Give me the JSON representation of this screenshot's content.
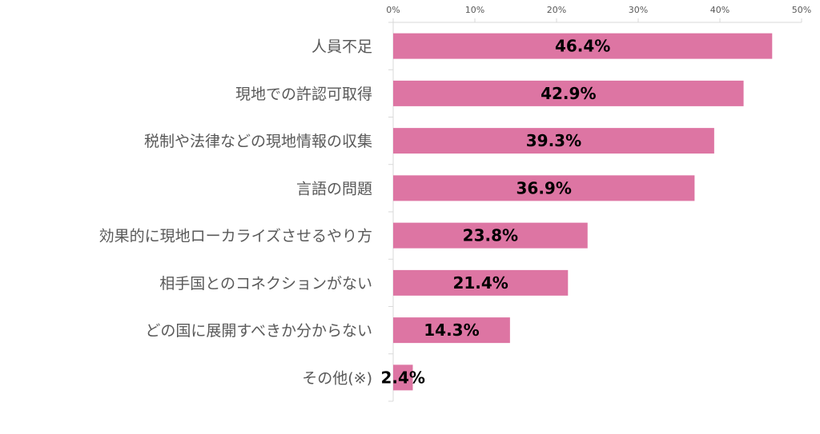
{
  "chart_data": {
    "type": "bar",
    "orientation": "horizontal",
    "categories": [
      "人員不足",
      "現地での許認可取得",
      "税制や法律などの現地情報の収集",
      "言語の問題",
      "効果的に現地ローカライズさせるやり方",
      "相手国とのコネクションがない",
      "どの国に展開すべきか分からない",
      "その他(※)"
    ],
    "values": [
      46.4,
      42.9,
      39.3,
      36.9,
      23.8,
      21.4,
      14.3,
      2.4
    ],
    "data_labels": [
      "46.4%",
      "42.9%",
      "39.3%",
      "36.9%",
      "23.8%",
      "21.4%",
      "14.3%",
      "2.4%"
    ],
    "xlim": [
      0,
      50
    ],
    "x_ticks": [
      0,
      10,
      20,
      30,
      40,
      50
    ],
    "x_tick_labels": [
      "0%",
      "10%",
      "20%",
      "30%",
      "40%",
      "50%"
    ],
    "x_axis_position": "top",
    "grid": false,
    "legend": "none",
    "bar_color": "#dd75a3",
    "axis_color": "#d9d9d9"
  }
}
